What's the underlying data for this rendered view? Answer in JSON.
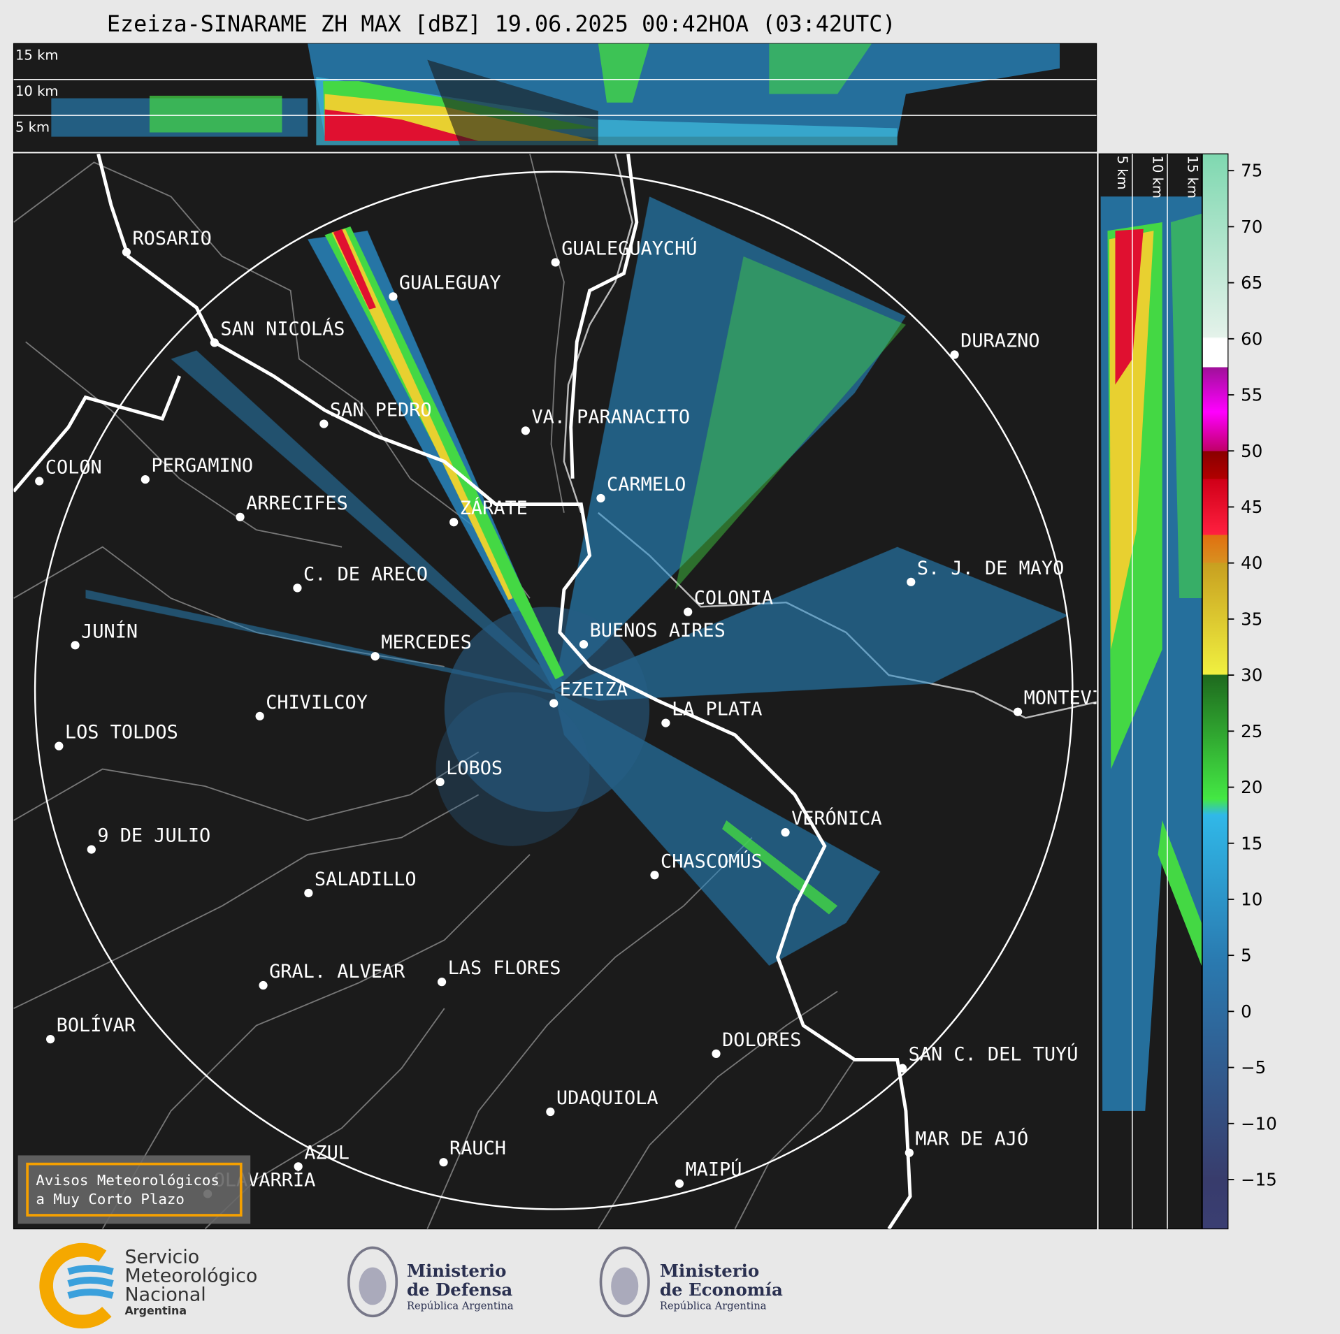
{
  "title": "Ezeiza-SINARAME ZH MAX [dBZ] 19.06.2025 00:42HOA (03:42UTC)",
  "height_labels": [
    "15 km",
    "10 km",
    "5 km"
  ],
  "cities": [
    "ROSARIO",
    "GUALEGUAYCHÚ",
    "GUALEGUAY",
    "SAN NICOLÁS",
    "DURAZNO",
    "SAN PEDRO",
    "VA. PARANACITO",
    "COLON",
    "PERGAMINO",
    "CARMELO",
    "ARRECIFES",
    "ZÁRATE",
    "S. J. DE MAYO",
    "C. DE ARECO",
    "COLONIA",
    "JUNÍN",
    "BUENOS AIRES",
    "MERCEDES",
    "EZEIZA",
    "MONTEVIDEO",
    "CHIVILCOY",
    "LA PLATA",
    "LOS TOLDOS",
    "LOBOS",
    "VERÓNICA",
    "9 DE JULIO",
    "CHASCOMÚS",
    "SALADILLO",
    "GRAL. ALVEAR",
    "LAS FLORES",
    "BOLÍVAR",
    "DOLORES",
    "SAN C. DEL TUYÚ",
    "UDAQUIOLA",
    "MAR DE AJÓ",
    "RAUCH",
    "AZUL",
    "MAIPÚ",
    "OLAVARRÍA"
  ],
  "colorbar": {
    "lim": [
      -19.4,
      76.5
    ],
    "ticks": [
      {
        "value": -15,
        "label": "−15"
      },
      {
        "value": -10,
        "label": "−10"
      },
      {
        "value": -5,
        "label": "−5"
      },
      0,
      5,
      10,
      15,
      20,
      25,
      30,
      35,
      40,
      45,
      50,
      55,
      60,
      65,
      70,
      75
    ]
  },
  "warning_box": [
    "Avisos Meteorológicos",
    "a Muy Corto Plazo"
  ],
  "logos": {
    "smn": [
      "Servicio",
      "Meteorológico",
      "Nacional",
      "Argentina"
    ],
    "defensa": [
      "Ministerio",
      "de Defensa",
      "República Argentina"
    ],
    "economia": [
      "Ministerio",
      "de Economía",
      "República Argentina"
    ]
  }
}
